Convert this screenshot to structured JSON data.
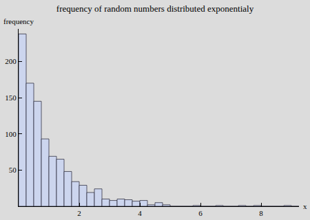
{
  "chart_data": {
    "type": "histogram",
    "title": "frequency of random numbers distributed exponentialy",
    "x_label": "x",
    "y_label": "frequency",
    "bins": [
      0,
      0.25,
      0.5,
      0.75,
      1,
      1.25,
      1.5,
      1.75,
      2,
      2.25,
      2.5,
      2.75,
      3,
      3.25,
      3.5,
      3.75,
      4,
      4.25,
      4.5,
      4.75,
      5,
      5.25,
      5.5,
      5.75,
      6,
      6.25,
      6.5,
      6.75,
      7,
      7.25,
      7.5,
      7.75,
      8,
      8.25,
      8.5,
      8.75,
      9,
      9.25
    ],
    "values": [
      238,
      170,
      145,
      93,
      69,
      65,
      48,
      34,
      29,
      19,
      24,
      10,
      8,
      10,
      9,
      7,
      8,
      2,
      5,
      2,
      0,
      0,
      0,
      1,
      0,
      0,
      1,
      0,
      0,
      1,
      0,
      1,
      0,
      0,
      0,
      1,
      0
    ],
    "color": "#ccd5ee",
    "xlim": [
      0,
      9.25
    ],
    "ylim": [
      0,
      245
    ],
    "xticks": [
      2,
      4,
      6,
      8
    ],
    "yticks": [
      50,
      100,
      150,
      200
    ],
    "grid": false
  }
}
